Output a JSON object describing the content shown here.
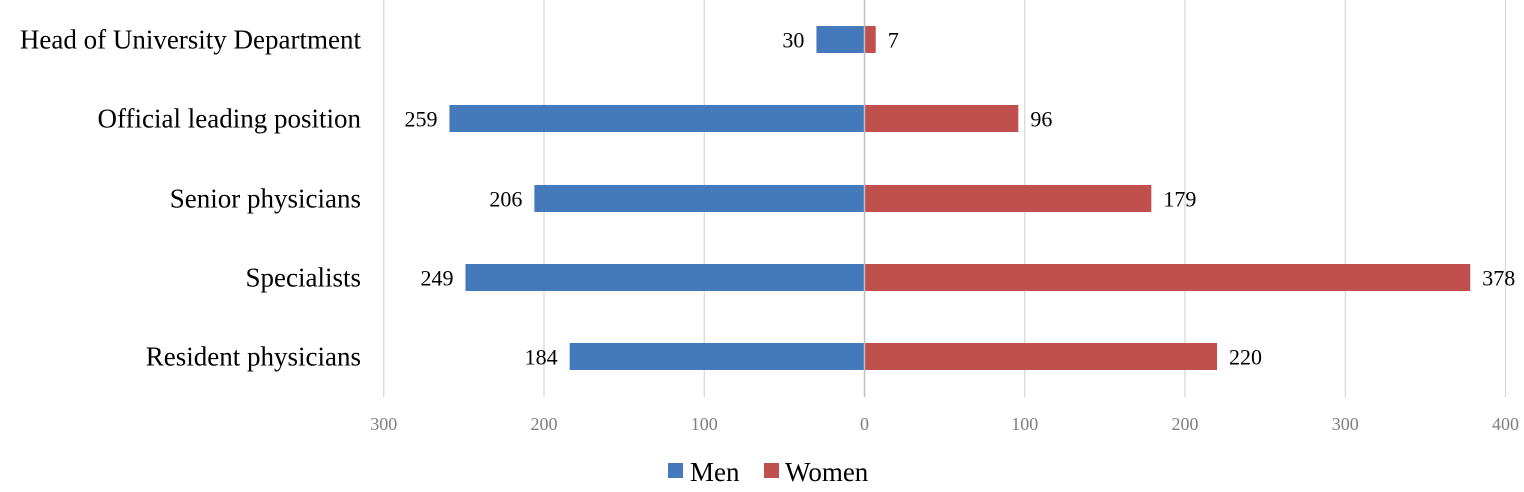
{
  "chart_data": {
    "type": "bar",
    "orientation": "horizontal",
    "layout": "diverging",
    "categories": [
      "Head of University Department",
      "Official leading position",
      "Senior physicians",
      "Specialists",
      "Resident physicians"
    ],
    "series": [
      {
        "name": "Men",
        "values": [
          30,
          259,
          206,
          249,
          184
        ],
        "direction": "left",
        "color": "#4479bb"
      },
      {
        "name": "Women",
        "values": [
          7,
          96,
          179,
          378,
          220
        ],
        "direction": "right",
        "color": "#c0504d"
      }
    ],
    "xticks": [
      "300",
      "200",
      "100",
      "0",
      "100",
      "200",
      "300",
      "400"
    ],
    "xlim": [
      -300,
      400
    ],
    "grid": true,
    "legend_position": "bottom"
  }
}
